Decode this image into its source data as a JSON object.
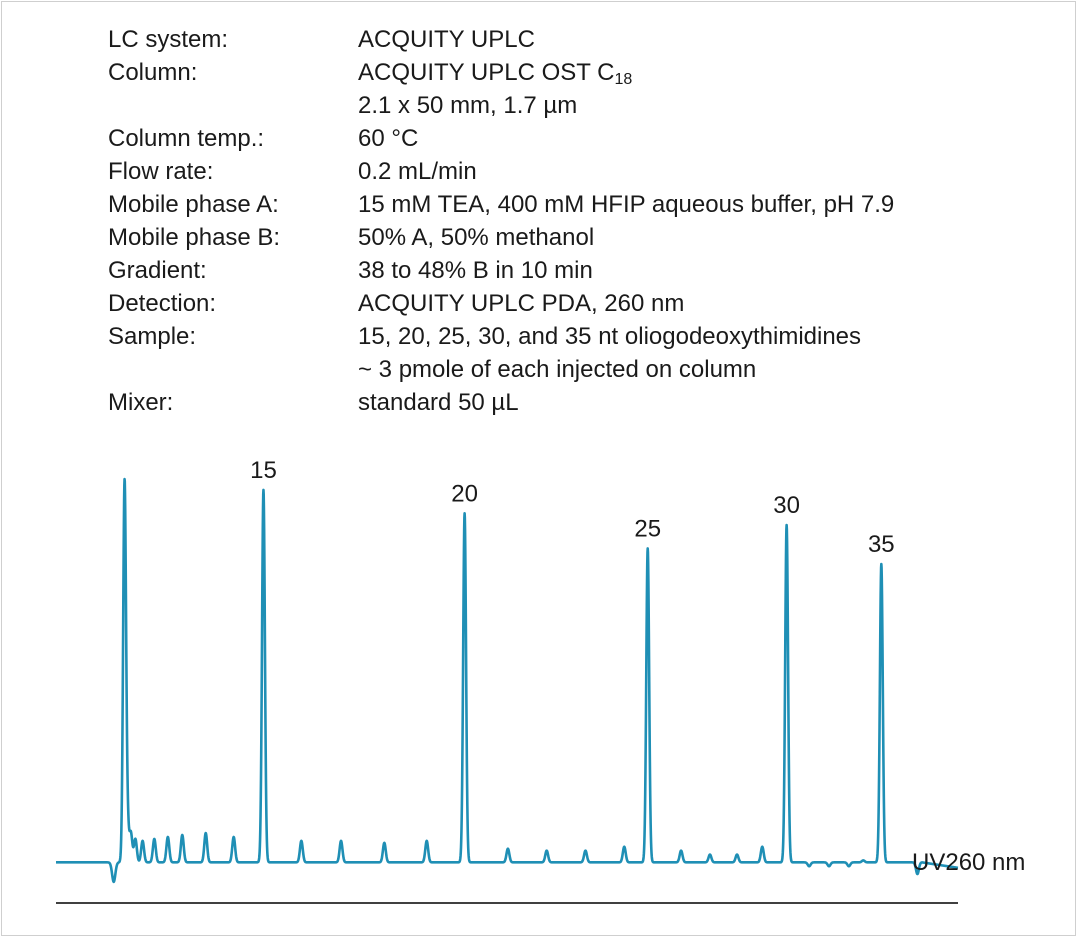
{
  "conditions": [
    {
      "label": "LC system:",
      "value": "ACQUITY UPLC"
    },
    {
      "label": "Column:",
      "value": "ACQUITY UPLC OST C",
      "value_sub": "18"
    },
    {
      "label": "",
      "value": "2.1 x 50 mm, 1.7 µm"
    },
    {
      "label": "Column temp.:",
      "value": "60 °C"
    },
    {
      "label": "Flow rate:",
      "value": "0.2 mL/min"
    },
    {
      "label": "Mobile phase A:",
      "value": "15 mM TEA, 400 mM HFIP aqueous buffer, pH 7.9"
    },
    {
      "label": "Mobile phase B:",
      "value": "50% A, 50% methanol"
    },
    {
      "label": "Gradient:",
      "value": "38 to 48% B in 10 min"
    },
    {
      "label": "Detection:",
      "value": "ACQUITY UPLC PDA, 260 nm"
    },
    {
      "label": "Sample:",
      "value": "15, 20, 25, 30, and 35 nt oliogodeoxythimidines"
    },
    {
      "label": "",
      "value": "~ 3 pmole of each injected on column"
    },
    {
      "label": "Mixer:",
      "value": "standard 50 µL"
    }
  ],
  "chart_data": {
    "type": "line",
    "trace_label": "UV260 nm",
    "line_color": "#1f8fb5",
    "axis_color": "#000000",
    "grid": false,
    "x_range": [
      0,
      100
    ],
    "y_range": [
      0,
      100
    ],
    "baseline": 3.5,
    "peak_width": 0.35,
    "peaks": [
      {
        "x": 7.6,
        "y": 100,
        "label": ""
      },
      {
        "x": 7.9,
        "y": 14,
        "label": ""
      },
      {
        "x": 8.3,
        "y": 11,
        "label": ""
      },
      {
        "x": 8.8,
        "y": 9.5,
        "label": ""
      },
      {
        "x": 9.6,
        "y": 9,
        "label": ""
      },
      {
        "x": 10.9,
        "y": 9.5,
        "label": ""
      },
      {
        "x": 12.4,
        "y": 10,
        "label": ""
      },
      {
        "x": 14.0,
        "y": 10.5,
        "label": ""
      },
      {
        "x": 16.6,
        "y": 11,
        "label": ""
      },
      {
        "x": 19.7,
        "y": 10,
        "label": ""
      },
      {
        "x": 23.0,
        "y": 99,
        "label": "15"
      },
      {
        "x": 27.2,
        "y": 9,
        "label": ""
      },
      {
        "x": 31.6,
        "y": 9,
        "label": ""
      },
      {
        "x": 36.4,
        "y": 8.5,
        "label": ""
      },
      {
        "x": 41.1,
        "y": 9,
        "label": ""
      },
      {
        "x": 45.3,
        "y": 93,
        "label": "20"
      },
      {
        "x": 50.1,
        "y": 7,
        "label": ""
      },
      {
        "x": 54.4,
        "y": 6.5,
        "label": ""
      },
      {
        "x": 58.7,
        "y": 6.5,
        "label": ""
      },
      {
        "x": 63.0,
        "y": 7.5,
        "label": ""
      },
      {
        "x": 65.6,
        "y": 84,
        "label": "25"
      },
      {
        "x": 69.3,
        "y": 6.5,
        "label": ""
      },
      {
        "x": 72.5,
        "y": 5.5,
        "label": ""
      },
      {
        "x": 75.5,
        "y": 5.5,
        "label": ""
      },
      {
        "x": 78.3,
        "y": 7.5,
        "label": ""
      },
      {
        "x": 81.0,
        "y": 90,
        "label": "30"
      },
      {
        "x": 83.5,
        "y": 2.5,
        "label": ""
      },
      {
        "x": 85.7,
        "y": 2.5,
        "label": ""
      },
      {
        "x": 87.9,
        "y": 2.5,
        "label": ""
      },
      {
        "x": 89.5,
        "y": 4,
        "label": ""
      },
      {
        "x": 91.5,
        "y": 80,
        "label": "35"
      },
      {
        "x": 95.5,
        "y": 0.5,
        "label": ""
      }
    ],
    "dip": {
      "x": 6.4,
      "y": -5
    }
  }
}
